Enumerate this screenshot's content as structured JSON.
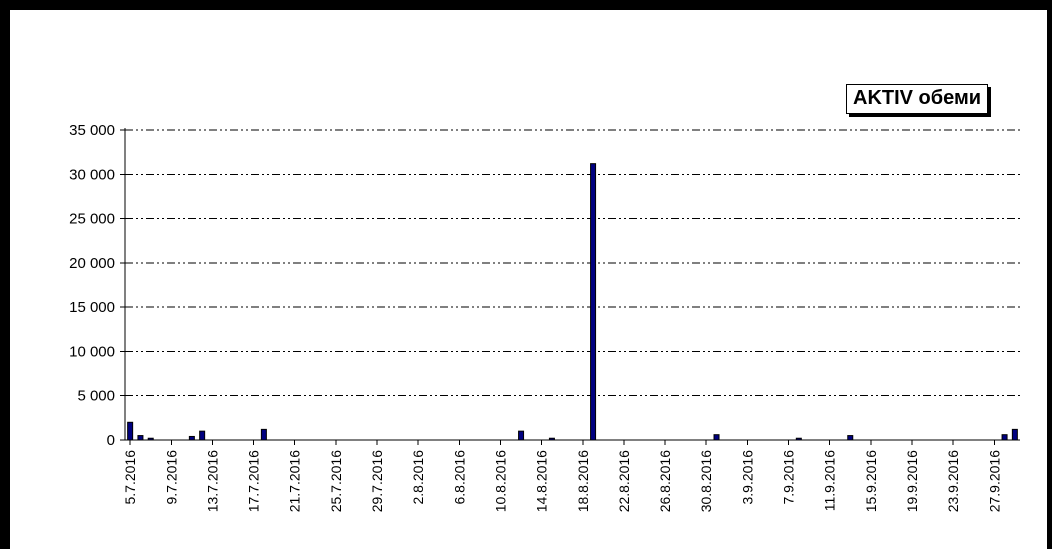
{
  "chart_data": {
    "type": "bar",
    "x_start": "5.7.2016",
    "x_end": "29.9.2016",
    "x_tick_labels": [
      "5.7.2016",
      "9.7.2016",
      "13.7.2016",
      "17.7.2016",
      "21.7.2016",
      "25.7.2016",
      "29.7.2016",
      "2.8.2016",
      "6.8.2016",
      "10.8.2016",
      "14.8.2016",
      "18.8.2016",
      "22.8.2016",
      "26.8.2016",
      "30.8.2016",
      "3.9.2016",
      "7.9.2016",
      "11.9.2016",
      "15.9.2016",
      "19.9.2016",
      "23.9.2016",
      "27.9.2016"
    ],
    "y_tick_labels": [
      "0",
      "5 000",
      "10 000",
      "15 000",
      "20 000",
      "25 000",
      "30 000",
      "35 000"
    ],
    "ylim": [
      0,
      35000
    ],
    "y_major_unit": 5000,
    "grid": true,
    "legend_position": "top-right",
    "series": [
      {
        "name": "AKTIV обеми",
        "color": "#000080",
        "points": [
          {
            "x": "5.7.2016",
            "y": 2000
          },
          {
            "x": "6.7.2016",
            "y": 500
          },
          {
            "x": "7.7.2016",
            "y": 200
          },
          {
            "x": "11.7.2016",
            "y": 400
          },
          {
            "x": "12.7.2016",
            "y": 1000
          },
          {
            "x": "18.7.2016",
            "y": 1200
          },
          {
            "x": "12.8.2016",
            "y": 1000
          },
          {
            "x": "15.8.2016",
            "y": 200
          },
          {
            "x": "19.8.2016",
            "y": 31200
          },
          {
            "x": "31.8.2016",
            "y": 600
          },
          {
            "x": "8.9.2016",
            "y": 200
          },
          {
            "x": "13.9.2016",
            "y": 500
          },
          {
            "x": "28.9.2016",
            "y": 600
          },
          {
            "x": "29.9.2016",
            "y": 1200
          }
        ]
      }
    ]
  }
}
